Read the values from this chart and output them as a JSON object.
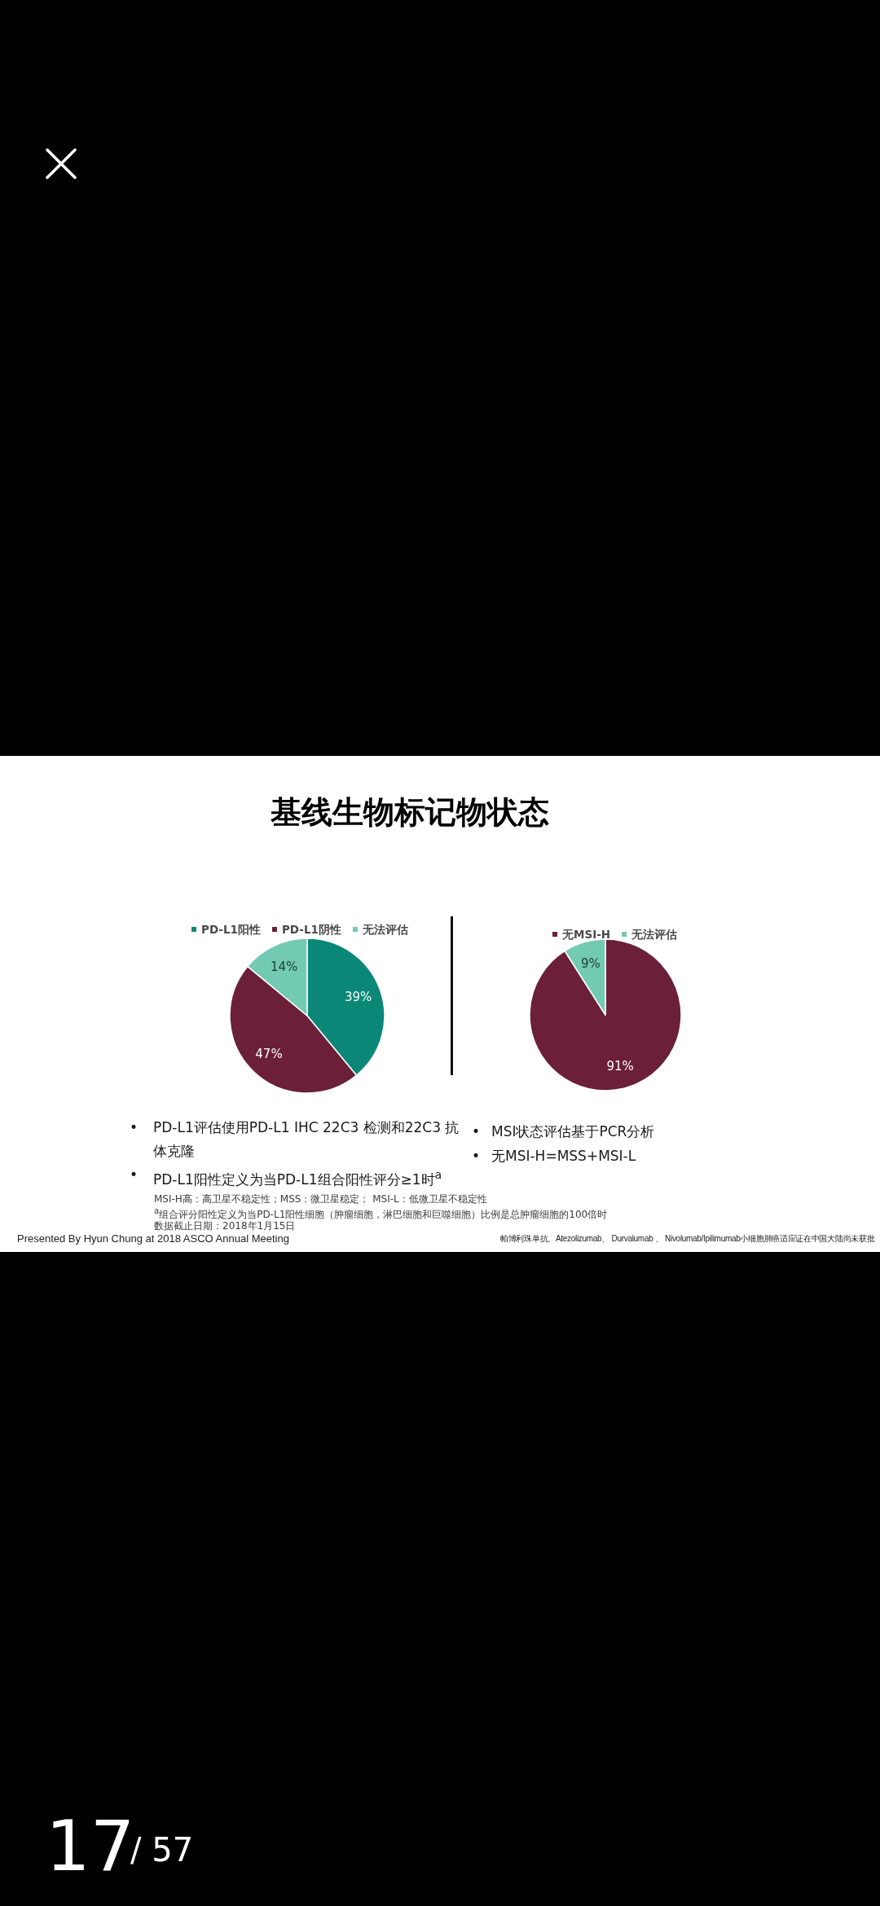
{
  "chart_data": [
    {
      "type": "pie",
      "title": "基线生物标记物状态",
      "categories": [
        "PD-L1阳性",
        "PD-L1阴性",
        "无法评估"
      ],
      "values": [
        39,
        47,
        14
      ],
      "colors": [
        "#0b8778",
        "#6b1f38",
        "#72cab2"
      ],
      "value_labels": [
        "39%",
        "47%",
        "14%"
      ],
      "legend": "top",
      "annotations": [
        "•",
        "PD-L1评估使用PD-L1 IHC 22C3 检测和22C3 抗体克隆",
        "•",
        "PD-L1阳性定义为当PD-L1组合阳性评分≥1时$^{a}$",
        "MSI-H高：高卫星不稳定性；MSS：微卫星稳定；  MSI-L：低微卫星不稳定性",
        "$^{a}$组合评分阳性定义为当PD-L1阳性细胞（肿瘤细胞，淋巴细胞和巨噬细胞）比例是总肿瘤细胞的100倍时",
        "数据截止日期：2018年1月15日",
        "Presented By Hyun Chung at 2018 ASCO Annual Meeting"
      ]
    },
    {
      "type": "pie",
      "categories": [
        "无MSI-H",
        "无法评估"
      ],
      "values": [
        91,
        9
      ],
      "colors": [
        "#6b1f38",
        "#72cab2"
      ],
      "value_labels": [
        "91%",
        "9%"
      ],
      "legend": "top",
      "annotations": [
        "•",
        "MSI状态评估基于PCR分析",
        "•",
        "无MSI-H=MSS+MSI-L",
        "帕博利珠单抗、Atezolizumab、 Durvalumab 、 Nivolumab/Ipilimumab小细胞肺癌适应证在中国大陆尚未获批",
        "17",
        "/ 57"
      ]
    }
  ]
}
